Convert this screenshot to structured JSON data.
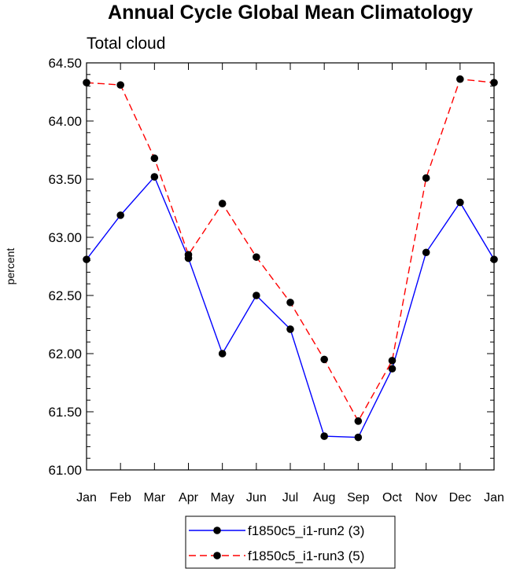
{
  "chart_data": {
    "type": "line",
    "title": "Annual Cycle Global Mean Climatology",
    "subtitle": "Total cloud",
    "xlabel": "",
    "ylabel": "percent",
    "categories": [
      "Jan",
      "Feb",
      "Mar",
      "Apr",
      "May",
      "Jun",
      "Jul",
      "Aug",
      "Sep",
      "Oct",
      "Nov",
      "Dec",
      "Jan"
    ],
    "ylim": [
      61.0,
      64.5
    ],
    "yticks": [
      61.0,
      61.5,
      62.0,
      62.5,
      63.0,
      63.5,
      64.0,
      64.5
    ],
    "ytick_labels": [
      "61.00",
      "61.50",
      "62.00",
      "62.50",
      "63.00",
      "63.50",
      "64.00",
      "64.50"
    ],
    "grid": false,
    "legend_position": "bottom-center",
    "series": [
      {
        "name": "f1850c5_i1-run2 (3)",
        "color": "#0000ff",
        "dash": "solid",
        "values": [
          62.81,
          63.19,
          63.52,
          62.82,
          62.0,
          62.5,
          62.21,
          61.29,
          61.28,
          61.87,
          62.87,
          63.3,
          62.81
        ]
      },
      {
        "name": "f1850c5_i1-run3 (5)",
        "color": "#ff0000",
        "dash": "dashed",
        "values": [
          64.33,
          64.31,
          63.68,
          62.85,
          63.29,
          62.83,
          62.44,
          61.95,
          61.42,
          61.94,
          63.51,
          64.36,
          64.33
        ]
      }
    ]
  }
}
